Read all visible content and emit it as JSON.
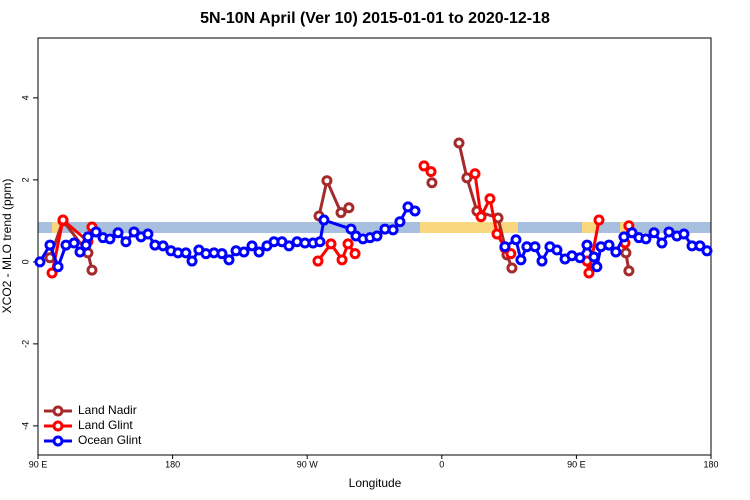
{
  "chart_data": {
    "type": "line",
    "title": "5N-10N April (Ver 10)   2015-01-01 to 2020-12-18",
    "x_label": "Longitude",
    "y_label": "XCO2 - MLO trend (ppm)",
    "xlim": [
      90,
      540
    ],
    "ylim": [
      -4.71,
      5.46
    ],
    "xticks": [
      {
        "value": 90,
        "label": "90 E"
      },
      180,
      {
        "value": 270,
        "label": "90 W"
      },
      {
        "value": 360,
        "label": "0"
      },
      {
        "value": 450,
        "label": "90 E"
      },
      {
        "value": 540,
        "label": "180"
      }
    ],
    "yticks": [
      -4,
      -2,
      0,
      2,
      4
    ],
    "legend": "bottom-left",
    "series": [
      {
        "name": "Land Nadir",
        "color": "#a52a2a",
        "x": [
          98.0,
          106.7,
          123.4,
          126.1,
          null,
          277.9,
          283.2,
          292.6,
          297.9,
          null,
          353.4,
          null,
          371.5,
          376.8,
          383.5,
          397.6,
          403.6,
          406.9,
          null,
          483.1,
          485.1
        ],
        "values": [
          0.1,
          1.0,
          0.22,
          -0.2,
          null,
          1.12,
          1.98,
          1.2,
          1.32,
          null,
          1.93,
          null,
          2.9,
          2.05,
          1.24,
          1.07,
          0.17,
          -0.15,
          null,
          0.22,
          -0.22
        ]
      },
      {
        "name": "Land Glint",
        "color": "#ff0000",
        "x": [
          99.4,
          106.7,
          123.4,
          126.1,
          null,
          277.2,
          285.9,
          293.3,
          297.3,
          302.0,
          null,
          348.1,
          352.8,
          null,
          382.2,
          386.2,
          392.2,
          396.9,
          402.2,
          406.2,
          null,
          457.1,
          458.4,
          465.1,
          null,
          482.5,
          485.1
        ],
        "values": [
          -0.27,
          1.02,
          0.5,
          0.85,
          null,
          0.02,
          0.44,
          0.05,
          0.44,
          0.2,
          null,
          2.34,
          2.2,
          null,
          2.15,
          1.1,
          1.54,
          0.68,
          0.34,
          0.2,
          null,
          0.02,
          -0.27,
          1.02,
          null,
          0.46,
          0.88
        ]
      },
      {
        "name": "Ocean Glint",
        "color": "#0000ff",
        "x": [
          91.3,
          98.0,
          103.4,
          108.7,
          114.1,
          118.1,
          122.1,
          123.4,
          128.8,
          133.5,
          138.1,
          143.5,
          148.8,
          154.2,
          158.9,
          163.5,
          168.2,
          173.6,
          178.9,
          183.6,
          188.9,
          193.0,
          197.6,
          202.3,
          207.7,
          213.0,
          217.7,
          222.4,
          227.7,
          233.1,
          237.8,
          243.1,
          247.8,
          253.1,
          257.8,
          263.2,
          268.5,
          273.9,
          278.5,
          281.2,
          299.3,
          302.6,
          307.3,
          312.0,
          316.7,
          322.0,
          327.4,
          332.0,
          337.4,
          342.1,
          null,
          402.2,
          409.6,
          412.9,
          416.9,
          422.3,
          427.0,
          432.3,
          437.0,
          442.4,
          447.0,
          452.4,
          457.1,
          461.7,
          463.7,
          466.4,
          471.8,
          476.4,
          481.8,
          487.2,
          491.8,
          496.5,
          501.9,
          507.2,
          511.9,
          517.2,
          521.9,
          527.3,
          532.6,
          537.3
        ],
        "values": [
          0.0,
          0.41,
          -0.12,
          0.41,
          0.46,
          0.24,
          0.41,
          0.61,
          0.73,
          0.59,
          0.56,
          0.71,
          0.49,
          0.73,
          0.61,
          0.68,
          0.41,
          0.39,
          0.27,
          0.22,
          0.22,
          0.02,
          0.29,
          0.2,
          0.22,
          0.2,
          0.05,
          0.27,
          0.24,
          0.39,
          0.24,
          0.39,
          0.49,
          0.49,
          0.39,
          0.49,
          0.46,
          0.46,
          0.49,
          1.02,
          0.8,
          0.63,
          0.56,
          0.59,
          0.63,
          0.8,
          0.78,
          0.98,
          1.34,
          1.24,
          null,
          0.37,
          0.54,
          0.05,
          0.37,
          0.37,
          0.02,
          0.37,
          0.29,
          0.07,
          0.15,
          0.1,
          0.41,
          0.12,
          -0.12,
          0.37,
          0.41,
          0.24,
          0.61,
          0.71,
          0.59,
          0.56,
          0.71,
          0.46,
          0.73,
          0.63,
          0.68,
          0.39,
          0.39,
          0.27
        ]
      }
    ]
  }
}
